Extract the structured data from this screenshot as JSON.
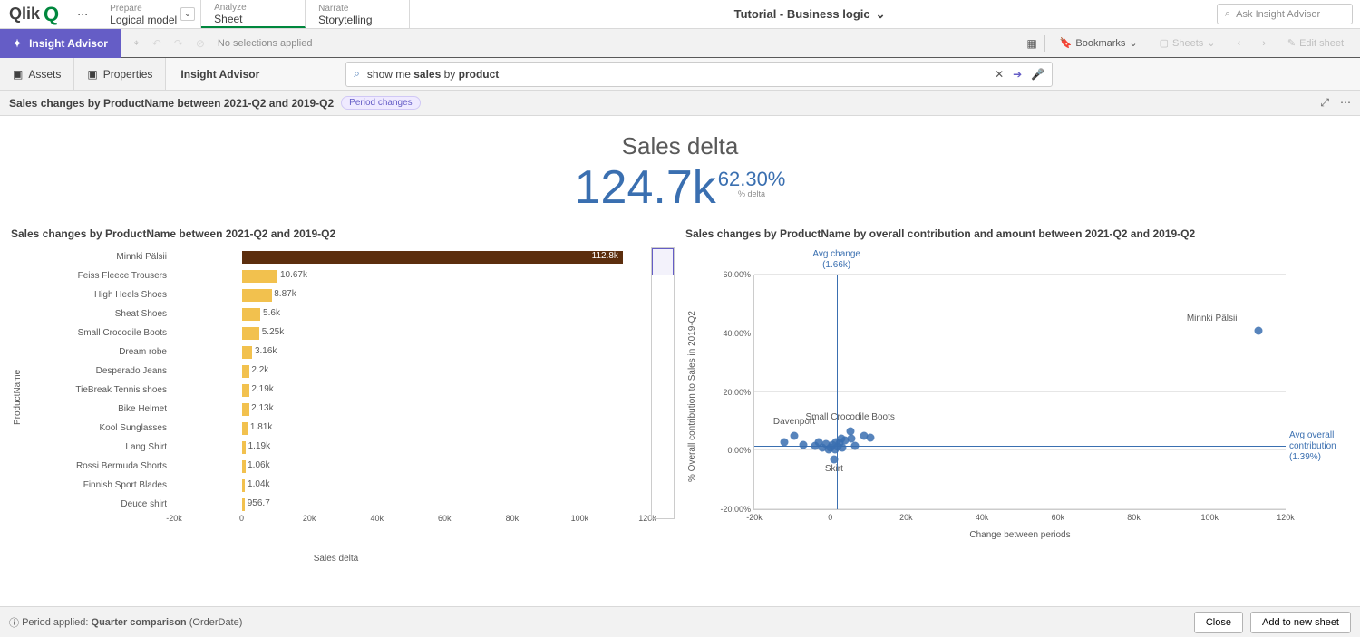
{
  "colors": {
    "accent": "#00873d",
    "purple": "#655dc6",
    "blue": "#3a6fb0",
    "barGold": "#f2c14e",
    "barDark": "#5c2e0e",
    "grey": "#8c8c8c"
  },
  "topnav": {
    "logo": "Qlik",
    "tabs": [
      {
        "sup": "Prepare",
        "label": "Logical model",
        "hasChevron": true
      },
      {
        "sup": "Analyze",
        "label": "Sheet",
        "active": true
      },
      {
        "sup": "Narrate",
        "label": "Storytelling"
      }
    ],
    "appTitle": "Tutorial - Business logic",
    "askPlaceholder": "Ask Insight Advisor"
  },
  "selbar": {
    "insightBtn": "Insight Advisor",
    "noSelections": "No selections applied",
    "bookmarks": "Bookmarks",
    "sheets": "Sheets",
    "editSheet": "Edit sheet"
  },
  "iaRow": {
    "assets": "Assets",
    "properties": "Properties",
    "label": "Insight Advisor",
    "queryPlain1": "show me ",
    "queryBold1": "sales",
    "queryPlain2": " by ",
    "queryBold2": "product"
  },
  "crumb": {
    "title": "Sales changes by ProductName between 2021-Q2 and 2019-Q2",
    "pill": "Period changes"
  },
  "kpi": {
    "title": "Sales delta",
    "value": "124.7k",
    "pct": "62.30%",
    "pctSub": "% delta"
  },
  "barChart": {
    "title": "Sales changes by ProductName between 2021-Q2 and 2019-Q2",
    "yAxisLabel": "ProductName",
    "xAxisLabel": "Sales delta",
    "xmin": -20000,
    "xmax": 120000,
    "xticks": [
      {
        "v": -20000,
        "l": "-20k"
      },
      {
        "v": 0,
        "l": "0"
      },
      {
        "v": 20000,
        "l": "20k"
      },
      {
        "v": 40000,
        "l": "40k"
      },
      {
        "v": 60000,
        "l": "60k"
      },
      {
        "v": 80000,
        "l": "80k"
      },
      {
        "v": 100000,
        "l": "100k"
      },
      {
        "v": 120000,
        "l": "120k"
      }
    ],
    "bars": [
      {
        "name": "Minnki Pälsii",
        "value": 112800,
        "label": "112.8k",
        "dark": true,
        "labelInside": true
      },
      {
        "name": "Feiss Fleece Trousers",
        "value": 10670,
        "label": "10.67k"
      },
      {
        "name": "High Heels Shoes",
        "value": 8870,
        "label": "8.87k"
      },
      {
        "name": "Sheat Shoes",
        "value": 5600,
        "label": "5.6k"
      },
      {
        "name": "Small Crocodile Boots",
        "value": 5250,
        "label": "5.25k"
      },
      {
        "name": "Dream robe",
        "value": 3160,
        "label": "3.16k"
      },
      {
        "name": "Desperado Jeans",
        "value": 2200,
        "label": "2.2k"
      },
      {
        "name": "TieBreak Tennis shoes",
        "value": 2190,
        "label": "2.19k"
      },
      {
        "name": "Bike Helmet",
        "value": 2130,
        "label": "2.13k"
      },
      {
        "name": "Kool Sunglasses",
        "value": 1810,
        "label": "1.81k"
      },
      {
        "name": "Lang Shirt",
        "value": 1190,
        "label": "1.19k"
      },
      {
        "name": "Rossi Bermuda Shorts",
        "value": 1060,
        "label": "1.06k"
      },
      {
        "name": "Finnish Sport Blades",
        "value": 1040,
        "label": "1.04k"
      },
      {
        "name": "Deuce shirt",
        "value": 956.7,
        "label": "956.7"
      }
    ]
  },
  "scatter": {
    "title": "Sales changes by ProductName by overall contribution and amount between 2021-Q2 and 2019-Q2",
    "yAxisLabel": "% Overall contribution to Sales in 2019-Q2",
    "xAxisLabel": "Change between periods",
    "xmin": -20000,
    "xmax": 120000,
    "ymin": -20,
    "ymax": 60,
    "xticks": [
      {
        "v": -20000,
        "l": "-20k"
      },
      {
        "v": 0,
        "l": "0"
      },
      {
        "v": 20000,
        "l": "20k"
      },
      {
        "v": 40000,
        "l": "40k"
      },
      {
        "v": 60000,
        "l": "60k"
      },
      {
        "v": 80000,
        "l": "80k"
      },
      {
        "v": 100000,
        "l": "100k"
      },
      {
        "v": 120000,
        "l": "120k"
      }
    ],
    "yticks": [
      {
        "v": -20,
        "l": "-20.00%"
      },
      {
        "v": 0,
        "l": "0.00%"
      },
      {
        "v": 20,
        "l": "20.00%"
      },
      {
        "v": 40,
        "l": "40.00%"
      },
      {
        "v": 60,
        "l": "60.00%"
      }
    ],
    "refV": {
      "x": 1660,
      "labelTop": "Avg change",
      "labelBottom": "(1.66k)"
    },
    "refH": {
      "y": 1.39,
      "labelTop": "Avg overall",
      "labelMid": "contribution",
      "labelBottom": "(1.39%)"
    },
    "labeledPoints": [
      {
        "x": 112800,
        "y": 41,
        "label": "Minnki Pälsii",
        "labelPos": "left"
      },
      {
        "x": 5250,
        "y": 6.5,
        "label": "Small Crocodile Boots",
        "labelPos": "top"
      },
      {
        "x": -9500,
        "y": 5,
        "label": "Davenport",
        "labelPos": "top"
      },
      {
        "x": 1000,
        "y": -3,
        "label": "Skirt",
        "labelPos": "bottom"
      }
    ],
    "cluster": [
      {
        "x": -12000,
        "y": 3
      },
      {
        "x": -7000,
        "y": 2
      },
      {
        "x": -4000,
        "y": 1.5
      },
      {
        "x": -2000,
        "y": 1
      },
      {
        "x": -500,
        "y": 0.5
      },
      {
        "x": 0,
        "y": 1
      },
      {
        "x": 500,
        "y": 2
      },
      {
        "x": 1200,
        "y": 0.5
      },
      {
        "x": 2000,
        "y": 1.2
      },
      {
        "x": 2500,
        "y": 2.5
      },
      {
        "x": 3200,
        "y": 1
      },
      {
        "x": 4000,
        "y": 3.5
      },
      {
        "x": 5600,
        "y": 4
      },
      {
        "x": 8800,
        "y": 5
      },
      {
        "x": 10600,
        "y": 4.5
      },
      {
        "x": -3000,
        "y": 3
      },
      {
        "x": 1500,
        "y": 3
      },
      {
        "x": 3000,
        "y": 4
      },
      {
        "x": 6500,
        "y": 1.5
      },
      {
        "x": -1200,
        "y": 2.2
      }
    ]
  },
  "footer": {
    "periodLabel": "Period applied:",
    "periodValue": "Quarter comparison",
    "periodField": "(OrderDate)",
    "close": "Close",
    "addSheet": "Add to new sheet"
  }
}
